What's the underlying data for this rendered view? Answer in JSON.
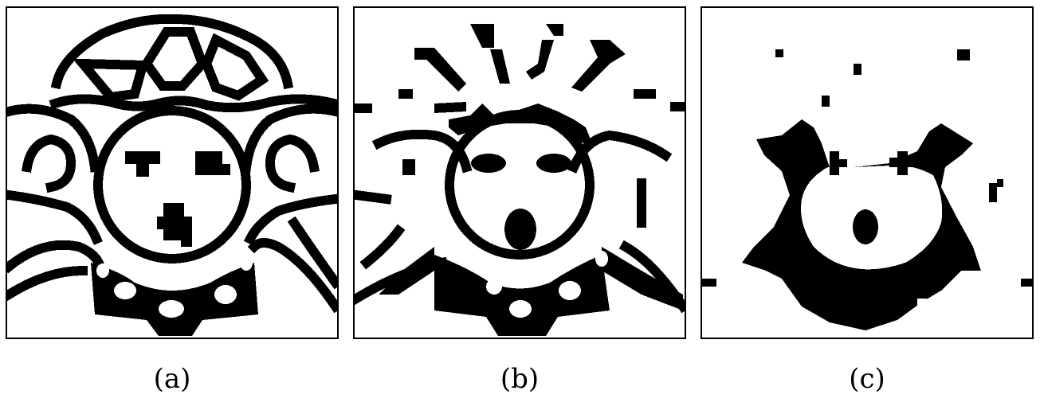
{
  "figure": {
    "panels": [
      {
        "caption": "(a)"
      },
      {
        "caption": "(b)"
      },
      {
        "caption": "(c)"
      }
    ],
    "colors": {
      "ink": "#000000",
      "paper": "#ffffff"
    }
  }
}
